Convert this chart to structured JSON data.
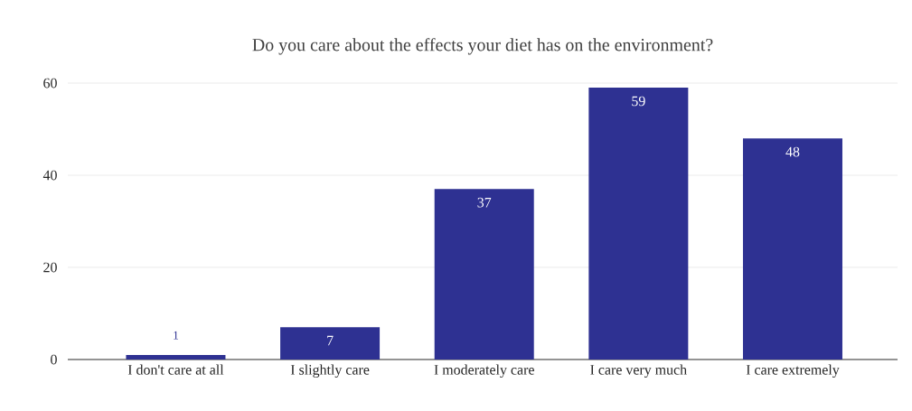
{
  "chart_data": {
    "type": "bar",
    "title": "Do you care about the effects your diet has on the environment?",
    "categories": [
      "I don't care at all",
      "I slightly care",
      "I moderately care",
      "I care very much",
      "I care extremely"
    ],
    "values": [
      1,
      7,
      37,
      59,
      48
    ],
    "color": "#2e3192",
    "ylim": [
      0,
      60
    ],
    "yticks": [
      0,
      20,
      40,
      60
    ],
    "grid": "y",
    "data_labels": true
  }
}
